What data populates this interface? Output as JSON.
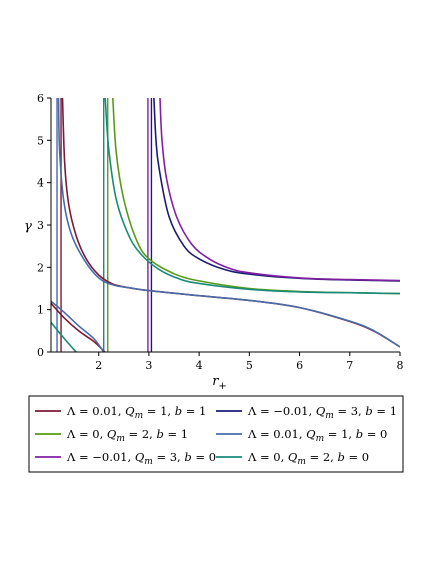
{
  "chart_data": {
    "type": "line",
    "title": "",
    "xlabel": "r",
    "xlabel_sub": "+",
    "ylabel": "γ",
    "xlim": [
      1.05,
      8
    ],
    "ylim": [
      0,
      6
    ],
    "x_ticks": [
      "2",
      "3",
      "4",
      "5",
      "6",
      "7",
      "8"
    ],
    "x_tick_values": [
      2,
      3,
      4,
      5,
      6,
      7,
      8
    ],
    "y_ticks": [
      "0",
      "1",
      "2",
      "3",
      "4",
      "5",
      "6"
    ],
    "y_tick_values": [
      0,
      1,
      2,
      3,
      4,
      5,
      6
    ],
    "grid": false,
    "legend_position": "bottom",
    "series": [
      {
        "name": "Λ = 0.01, Q_m = 1, b = 1",
        "color": "#7a1a36",
        "segments": [
          [
            [
              1.05,
              1.15
            ],
            [
              1.3,
              0.82
            ],
            [
              1.6,
              0.5
            ],
            [
              1.9,
              0.25
            ],
            [
              2.12,
              0.0
            ]
          ],
          [
            [
              1.28,
              6.0
            ],
            [
              1.32,
              4.5
            ],
            [
              1.4,
              3.5
            ],
            [
              1.55,
              2.75
            ],
            [
              1.75,
              2.2
            ],
            [
              2.0,
              1.82
            ],
            [
              2.25,
              1.62
            ],
            [
              2.5,
              1.54
            ],
            [
              3.0,
              1.45
            ],
            [
              4.0,
              1.33
            ],
            [
              5.0,
              1.22
            ],
            [
              6.0,
              1.05
            ],
            [
              7.0,
              0.72
            ],
            [
              7.5,
              0.48
            ],
            [
              8.0,
              0.12
            ]
          ]
        ],
        "asymptotes": [
          1.25
        ]
      },
      {
        "name": "Λ = −0.01, Q_m = 3, b = 1",
        "color": "#1c1c78",
        "segments": [
          [
            [
              3.1,
              6.0
            ],
            [
              3.14,
              5.0
            ],
            [
              3.2,
              4.35
            ],
            [
              3.4,
              3.2
            ],
            [
              3.7,
              2.5
            ],
            [
              4.0,
              2.2
            ],
            [
              4.5,
              1.95
            ],
            [
              5.0,
              1.84
            ],
            [
              6.0,
              1.74
            ],
            [
              7.0,
              1.7
            ],
            [
              8.0,
              1.68
            ]
          ]
        ],
        "asymptotes": [
          3.05
        ]
      },
      {
        "name": "Λ = 0, Q_m = 2, b = 1",
        "color": "#5a9a1a",
        "segments": [
          [
            [
              2.28,
              6.0
            ],
            [
              2.35,
              4.7
            ],
            [
              2.5,
              3.6
            ],
            [
              2.75,
              2.65
            ],
            [
              3.0,
              2.2
            ],
            [
              3.5,
              1.85
            ],
            [
              4.0,
              1.68
            ],
            [
              5.0,
              1.5
            ],
            [
              6.0,
              1.43
            ],
            [
              7.0,
              1.4
            ],
            [
              8.0,
              1.38
            ]
          ]
        ],
        "asymptotes": [
          2.18
        ]
      },
      {
        "name": "Λ = 0.01, Q_m = 1, b = 0",
        "color": "#4a6aa8",
        "segments": [
          [
            [
              1.05,
              1.2
            ],
            [
              1.3,
              0.95
            ],
            [
              1.6,
              0.62
            ],
            [
              1.9,
              0.32
            ],
            [
              2.1,
              0.0
            ]
          ],
          [
            [
              1.2,
              6.0
            ],
            [
              1.22,
              4.8
            ],
            [
              1.3,
              3.6
            ],
            [
              1.45,
              2.8
            ],
            [
              1.7,
              2.2
            ],
            [
              2.0,
              1.75
            ],
            [
              2.3,
              1.58
            ],
            [
              2.6,
              1.52
            ],
            [
              3.0,
              1.45
            ],
            [
              4.0,
              1.33
            ],
            [
              5.0,
              1.22
            ],
            [
              6.0,
              1.05
            ],
            [
              7.0,
              0.73
            ],
            [
              7.5,
              0.49
            ],
            [
              8.0,
              0.12
            ]
          ]
        ],
        "asymptotes": [
          1.17
        ]
      },
      {
        "name": "Λ = −0.01, Q_m = 3, b = 0",
        "color": "#8020a0",
        "segments": [
          [
            [
              3.22,
              6.0
            ],
            [
              3.26,
              5.0
            ],
            [
              3.35,
              4.1
            ],
            [
              3.55,
              3.2
            ],
            [
              3.85,
              2.55
            ],
            [
              4.2,
              2.2
            ],
            [
              4.6,
              1.98
            ],
            [
              5.0,
              1.87
            ],
            [
              6.0,
              1.75
            ],
            [
              7.0,
              1.71
            ],
            [
              8.0,
              1.69
            ]
          ]
        ],
        "asymptotes": [
          2.98
        ]
      },
      {
        "name": "Λ = 0, Q_m = 2, b = 0",
        "color": "#1a8a78",
        "segments": [
          [
            [
              1.05,
              0.7
            ],
            [
              1.2,
              0.48
            ],
            [
              1.4,
              0.2
            ],
            [
              1.55,
              0.0
            ]
          ],
          [
            [
              2.13,
              6.0
            ],
            [
              2.2,
              4.8
            ],
            [
              2.35,
              3.6
            ],
            [
              2.6,
              2.75
            ],
            [
              2.85,
              2.3
            ],
            [
              3.2,
              1.95
            ],
            [
              3.6,
              1.73
            ],
            [
              4.0,
              1.62
            ],
            [
              5.0,
              1.48
            ],
            [
              6.0,
              1.42
            ],
            [
              7.0,
              1.4
            ],
            [
              8.0,
              1.38
            ]
          ]
        ],
        "asymptotes": [
          2.1
        ]
      }
    ]
  }
}
